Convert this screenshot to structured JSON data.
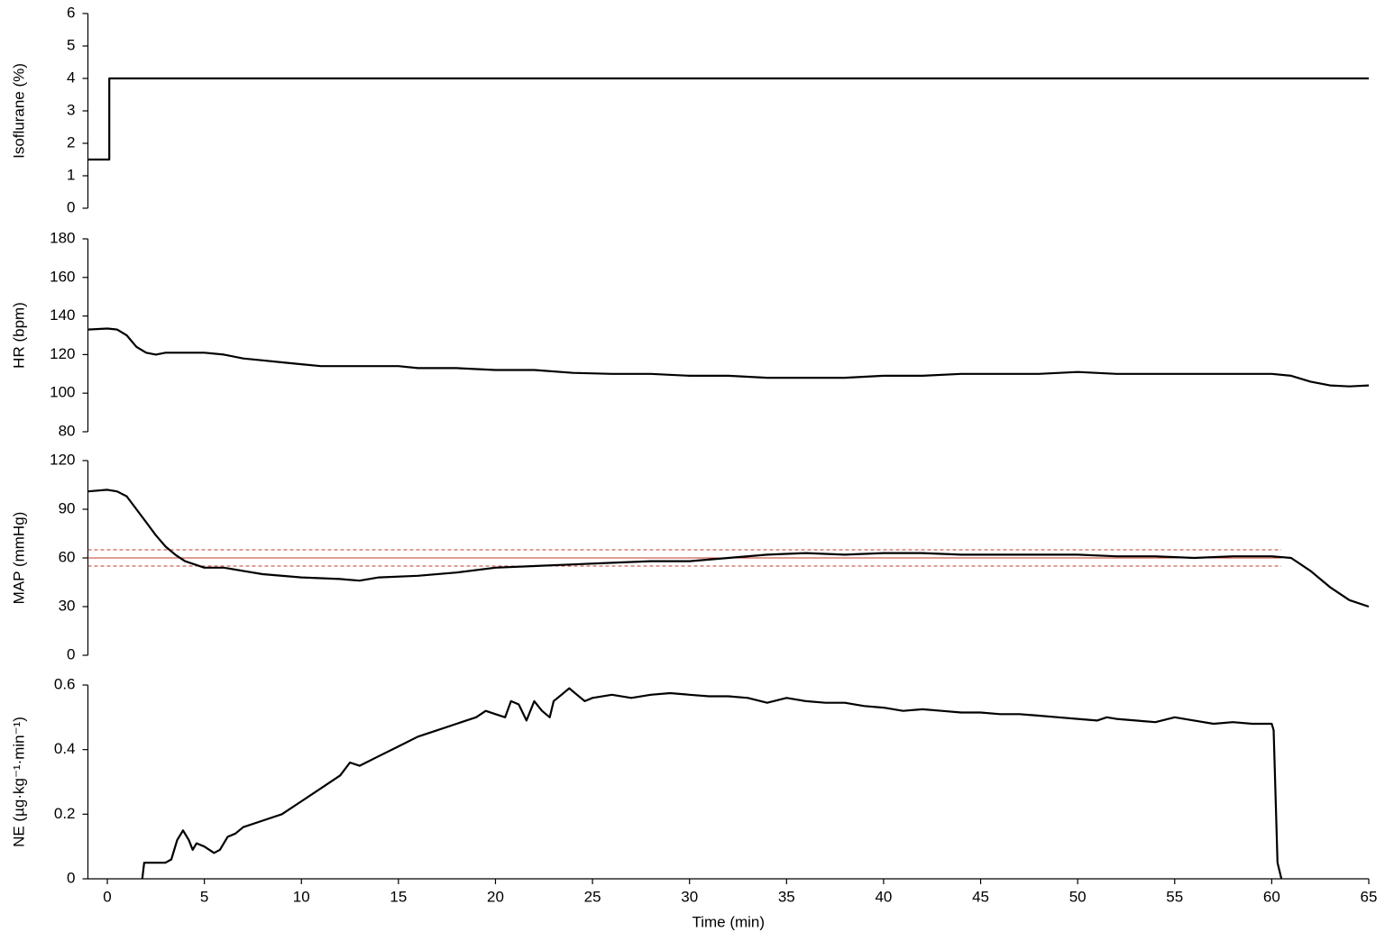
{
  "chart_data": [
    {
      "type": "line",
      "ylabel": "Isoflurane (%)",
      "color": "#000000",
      "xlim": [
        -1,
        65
      ],
      "ylim": [
        0,
        6
      ],
      "yticks": [
        0,
        1,
        2,
        3,
        4,
        5,
        6
      ],
      "x": [
        -1,
        0.1,
        0.1,
        65
      ],
      "values": [
        1.5,
        1.5,
        4,
        4
      ]
    },
    {
      "type": "line",
      "ylabel": "HR (bpm)",
      "color": "#000000",
      "xlim": [
        -1,
        65
      ],
      "ylim": [
        80,
        180
      ],
      "yticks": [
        80,
        100,
        120,
        140,
        160,
        180
      ],
      "x": [
        -1,
        0,
        0.5,
        1,
        1.5,
        2,
        2.5,
        3,
        4,
        5,
        6,
        7,
        8,
        9,
        10,
        11,
        12,
        13,
        14,
        15,
        16,
        18,
        20,
        22,
        24,
        26,
        28,
        30,
        32,
        34,
        36,
        38,
        40,
        42,
        44,
        46,
        48,
        50,
        52,
        54,
        56,
        58,
        60,
        61,
        62,
        63,
        64,
        65
      ],
      "values": [
        133,
        133.5,
        133,
        130,
        124,
        121,
        120,
        121,
        121,
        121,
        120,
        118,
        117,
        116,
        115,
        114,
        114,
        114,
        114,
        114,
        113,
        113,
        112,
        112,
        110.5,
        110,
        110,
        109,
        109,
        108,
        108,
        108,
        109,
        109,
        110,
        110,
        110,
        111,
        110,
        110,
        110,
        110,
        110,
        109,
        106,
        104,
        103.5,
        104
      ]
    },
    {
      "type": "line",
      "ylabel": "MAP (mmHg)",
      "color": "#000000",
      "xlim": [
        -1,
        65
      ],
      "ylim": [
        0,
        120
      ],
      "yticks": [
        0,
        30,
        60,
        90,
        120
      ],
      "hlines": [
        {
          "y": 60,
          "x": [
            -1,
            60.5
          ],
          "color": "#c0392b",
          "dashed": false
        },
        {
          "y": 55,
          "x": [
            -1,
            60.5
          ],
          "color": "#c0392b",
          "dashed": true
        },
        {
          "y": 65,
          "x": [
            -1,
            60.5
          ],
          "color": "#c0392b",
          "dashed": true
        }
      ],
      "x": [
        -1,
        0,
        0.5,
        1,
        1.5,
        2,
        2.5,
        3,
        3.5,
        4,
        5,
        6,
        7,
        8,
        10,
        12,
        13,
        14,
        16,
        18,
        20,
        22,
        24,
        26,
        28,
        30,
        32,
        34,
        36,
        38,
        40,
        42,
        44,
        46,
        48,
        50,
        52,
        54,
        56,
        58,
        60,
        61,
        62,
        63,
        64,
        65
      ],
      "values": [
        101,
        102,
        101,
        98,
        90,
        82,
        74,
        67,
        62,
        58,
        54,
        54,
        52,
        50,
        48,
        47,
        46,
        48,
        49,
        51,
        54,
        55,
        56,
        57,
        58,
        58,
        60,
        62,
        63,
        62,
        63,
        63,
        62,
        62,
        62,
        62,
        61,
        61,
        60,
        61,
        61,
        60,
        52,
        42,
        34,
        30
      ]
    },
    {
      "type": "line",
      "ylabel": "NE (µg·kg⁻¹·min⁻¹)",
      "xlabel": "Time (min)",
      "color": "#000000",
      "xlim": [
        -1,
        65
      ],
      "ylim": [
        0,
        0.6
      ],
      "yticks": [
        0,
        0.2,
        0.4,
        0.6
      ],
      "xticks": [
        0,
        5,
        10,
        15,
        20,
        25,
        30,
        35,
        40,
        45,
        50,
        55,
        60,
        65
      ],
      "x": [
        1.8,
        1.9,
        2.5,
        3,
        3.3,
        3.6,
        3.9,
        4.2,
        4.4,
        4.6,
        5,
        5.5,
        5.8,
        6.2,
        6.6,
        7,
        8,
        9,
        10,
        11,
        12,
        12.5,
        13,
        14,
        15,
        16,
        17,
        18,
        19,
        19.5,
        20,
        20.5,
        20.8,
        21.2,
        21.6,
        22,
        22.4,
        22.8,
        23,
        23.4,
        23.8,
        24.2,
        24.6,
        25,
        26,
        27,
        28,
        29,
        30,
        31,
        32,
        33,
        34,
        35,
        36,
        37,
        38,
        39,
        40,
        41,
        42,
        43,
        44,
        45,
        46,
        47,
        48,
        49,
        50,
        51,
        51.5,
        52,
        53,
        54,
        55,
        56,
        57,
        58,
        59,
        60,
        60.1,
        60.3,
        60.5
      ],
      "values": [
        0,
        0.05,
        0.05,
        0.05,
        0.06,
        0.12,
        0.15,
        0.12,
        0.09,
        0.11,
        0.1,
        0.08,
        0.09,
        0.13,
        0.14,
        0.16,
        0.18,
        0.2,
        0.24,
        0.28,
        0.32,
        0.36,
        0.35,
        0.38,
        0.41,
        0.44,
        0.46,
        0.48,
        0.5,
        0.52,
        0.51,
        0.5,
        0.55,
        0.54,
        0.49,
        0.55,
        0.52,
        0.5,
        0.55,
        0.57,
        0.59,
        0.57,
        0.55,
        0.56,
        0.57,
        0.56,
        0.57,
        0.575,
        0.57,
        0.565,
        0.565,
        0.56,
        0.545,
        0.56,
        0.55,
        0.545,
        0.545,
        0.535,
        0.53,
        0.52,
        0.525,
        0.52,
        0.515,
        0.515,
        0.51,
        0.51,
        0.505,
        0.5,
        0.495,
        0.49,
        0.5,
        0.495,
        0.49,
        0.485,
        0.5,
        0.49,
        0.48,
        0.485,
        0.48,
        0.48,
        0.46,
        0.05,
        0
      ]
    }
  ]
}
